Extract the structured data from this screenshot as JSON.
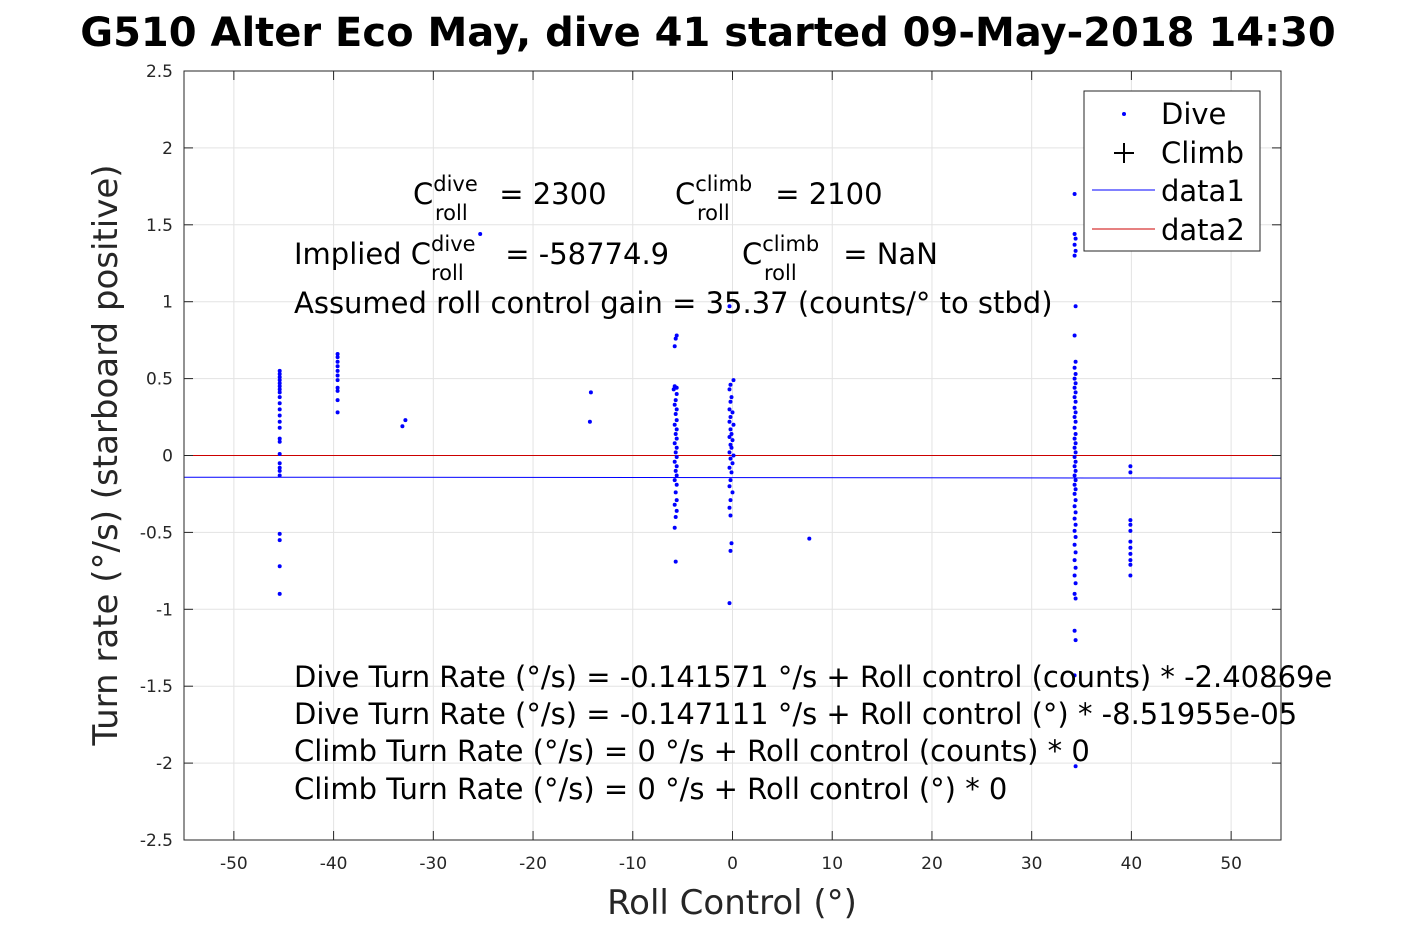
{
  "chart_data": {
    "type": "scatter",
    "title": "G510 Alter Eco May, dive 41 started 09-May-2018 14:30",
    "xlabel": "Roll Control (°)",
    "ylabel": "Turn rate (°/s) (starboard positive)",
    "xlim": [
      -55,
      55
    ],
    "ylim": [
      -2.5,
      2.5
    ],
    "grid": true,
    "xticks": [
      -50,
      -40,
      -30,
      -20,
      -10,
      0,
      10,
      20,
      30,
      40,
      50
    ],
    "yticks": [
      -2.5,
      -2,
      -1.5,
      -1,
      -0.5,
      0,
      0.5,
      1,
      1.5,
      2,
      2.5
    ],
    "legend": {
      "placement": "top-right",
      "entries": [
        "Dive",
        "Climb",
        "data1",
        "data2"
      ]
    },
    "series": [
      {
        "name": "Dive",
        "marker": "dot",
        "color": "#0000ff",
        "points": [
          [
            -45.4,
            0.55
          ],
          [
            -45.4,
            0.53
          ],
          [
            -45.4,
            0.51
          ],
          [
            -45.4,
            0.49
          ],
          [
            -45.4,
            0.47
          ],
          [
            -45.4,
            0.45
          ],
          [
            -45.4,
            0.43
          ],
          [
            -45.4,
            0.41
          ],
          [
            -45.4,
            0.38
          ],
          [
            -45.4,
            0.34
          ],
          [
            -45.4,
            0.3
          ],
          [
            -45.4,
            0.26
          ],
          [
            -45.4,
            0.22
          ],
          [
            -45.4,
            0.18
          ],
          [
            -45.4,
            0.11
          ],
          [
            -45.4,
            0.09
          ],
          [
            -45.4,
            0.01
          ],
          [
            -45.4,
            -0.05
          ],
          [
            -45.4,
            -0.08
          ],
          [
            -45.4,
            -0.1
          ],
          [
            -45.4,
            -0.13
          ],
          [
            -45.4,
            -0.51
          ],
          [
            -45.4,
            -0.55
          ],
          [
            -45.4,
            -0.72
          ],
          [
            -45.4,
            -0.9
          ],
          [
            -39.6,
            0.66
          ],
          [
            -39.6,
            0.64
          ],
          [
            -39.6,
            0.61
          ],
          [
            -39.6,
            0.58
          ],
          [
            -39.6,
            0.55
          ],
          [
            -39.6,
            0.52
          ],
          [
            -39.6,
            0.49
          ],
          [
            -39.6,
            0.44
          ],
          [
            -39.6,
            0.42
          ],
          [
            -39.6,
            0.36
          ],
          [
            -39.6,
            0.28
          ],
          [
            -32.8,
            0.23
          ],
          [
            -33.1,
            0.19
          ],
          [
            -25.3,
            1.44
          ],
          [
            -14.2,
            0.41
          ],
          [
            -14.3,
            0.22
          ],
          [
            -5.6,
            0.78
          ],
          [
            -5.7,
            0.76
          ],
          [
            -5.8,
            0.71
          ],
          [
            -5.8,
            0.45
          ],
          [
            -5.6,
            0.44
          ],
          [
            -5.9,
            0.43
          ],
          [
            -5.6,
            0.4
          ],
          [
            -5.7,
            0.36
          ],
          [
            -5.8,
            0.33
          ],
          [
            -5.6,
            0.3
          ],
          [
            -5.7,
            0.27
          ],
          [
            -5.6,
            0.23
          ],
          [
            -5.8,
            0.2
          ],
          [
            -5.6,
            0.17
          ],
          [
            -5.7,
            0.14
          ],
          [
            -5.6,
            0.11
          ],
          [
            -5.8,
            0.08
          ],
          [
            -5.6,
            0.05
          ],
          [
            -5.7,
            0.02
          ],
          [
            -5.6,
            -0.01
          ],
          [
            -5.8,
            -0.04
          ],
          [
            -5.6,
            -0.07
          ],
          [
            -5.7,
            -0.1
          ],
          [
            -5.6,
            -0.13
          ],
          [
            -5.8,
            -0.16
          ],
          [
            -5.6,
            -0.19
          ],
          [
            -5.7,
            -0.24
          ],
          [
            -5.6,
            -0.29
          ],
          [
            -5.8,
            -0.32
          ],
          [
            -5.6,
            -0.36
          ],
          [
            -5.7,
            -0.4
          ],
          [
            -5.8,
            -0.47
          ],
          [
            -5.7,
            -0.69
          ],
          [
            -0.3,
            0.97
          ],
          [
            0.1,
            0.49
          ],
          [
            -0.2,
            0.46
          ],
          [
            -0.3,
            0.43
          ],
          [
            -0.1,
            0.38
          ],
          [
            -0.2,
            0.35
          ],
          [
            -0.3,
            0.3
          ],
          [
            0.0,
            0.28
          ],
          [
            -0.2,
            0.25
          ],
          [
            -0.3,
            0.22
          ],
          [
            0.1,
            0.2
          ],
          [
            -0.2,
            0.17
          ],
          [
            -0.1,
            0.14
          ],
          [
            -0.3,
            0.12
          ],
          [
            0.0,
            0.1
          ],
          [
            -0.2,
            0.07
          ],
          [
            -0.1,
            0.05
          ],
          [
            -0.3,
            0.02
          ],
          [
            0.1,
            0.0
          ],
          [
            -0.2,
            -0.02
          ],
          [
            0.0,
            -0.05
          ],
          [
            -0.3,
            -0.08
          ],
          [
            -0.1,
            -0.11
          ],
          [
            -0.2,
            -0.16
          ],
          [
            -0.3,
            -0.2
          ],
          [
            0.0,
            -0.24
          ],
          [
            -0.2,
            -0.29
          ],
          [
            -0.3,
            -0.34
          ],
          [
            -0.2,
            -0.39
          ],
          [
            -0.1,
            -0.57
          ],
          [
            -0.2,
            -0.62
          ],
          [
            -0.3,
            -0.96
          ],
          [
            7.7,
            -0.54
          ],
          [
            34.3,
            1.7
          ],
          [
            34.3,
            1.44
          ],
          [
            34.4,
            1.41
          ],
          [
            34.3,
            1.37
          ],
          [
            34.4,
            1.33
          ],
          [
            34.3,
            1.3
          ],
          [
            34.4,
            0.97
          ],
          [
            34.3,
            0.78
          ],
          [
            34.4,
            0.61
          ],
          [
            34.3,
            0.57
          ],
          [
            34.4,
            0.53
          ],
          [
            34.3,
            0.5
          ],
          [
            34.4,
            0.47
          ],
          [
            34.3,
            0.44
          ],
          [
            34.4,
            0.41
          ],
          [
            34.3,
            0.38
          ],
          [
            34.4,
            0.35
          ],
          [
            34.3,
            0.31
          ],
          [
            34.4,
            0.28
          ],
          [
            34.3,
            0.25
          ],
          [
            34.4,
            0.22
          ],
          [
            34.3,
            0.18
          ],
          [
            34.4,
            0.14
          ],
          [
            34.3,
            0.11
          ],
          [
            34.4,
            0.08
          ],
          [
            34.3,
            0.05
          ],
          [
            34.4,
            0.02
          ],
          [
            34.3,
            -0.01
          ],
          [
            34.4,
            -0.04
          ],
          [
            34.3,
            -0.07
          ],
          [
            34.4,
            -0.1
          ],
          [
            34.3,
            -0.13
          ],
          [
            34.4,
            -0.16
          ],
          [
            34.3,
            -0.19
          ],
          [
            34.4,
            -0.22
          ],
          [
            34.3,
            -0.25
          ],
          [
            34.4,
            -0.29
          ],
          [
            34.3,
            -0.33
          ],
          [
            34.4,
            -0.37
          ],
          [
            34.3,
            -0.41
          ],
          [
            34.4,
            -0.45
          ],
          [
            34.3,
            -0.49
          ],
          [
            34.4,
            -0.53
          ],
          [
            34.3,
            -0.58
          ],
          [
            34.4,
            -0.63
          ],
          [
            34.3,
            -0.68
          ],
          [
            34.4,
            -0.73
          ],
          [
            34.3,
            -0.78
          ],
          [
            34.4,
            -0.83
          ],
          [
            34.3,
            -0.9
          ],
          [
            34.4,
            -0.93
          ],
          [
            34.3,
            -1.14
          ],
          [
            34.4,
            -1.2
          ],
          [
            34.3,
            -1.43
          ],
          [
            34.4,
            -2.02
          ],
          [
            39.9,
            -0.07
          ],
          [
            39.9,
            -0.11
          ],
          [
            39.9,
            -0.42
          ],
          [
            39.9,
            -0.45
          ],
          [
            39.9,
            -0.49
          ],
          [
            39.9,
            -0.56
          ],
          [
            39.9,
            -0.6
          ],
          [
            39.9,
            -0.64
          ],
          [
            39.9,
            -0.68
          ],
          [
            39.9,
            -0.71
          ],
          [
            39.9,
            -0.78
          ]
        ]
      },
      {
        "name": "Climb",
        "marker": "plus",
        "color": "#000000",
        "points": []
      },
      {
        "name": "data1",
        "marker": "line",
        "color": "#0000ff",
        "points": [
          [
            -55,
            -0.141
          ],
          [
            -40,
            -0.141
          ],
          [
            36,
            -0.146
          ],
          [
            55,
            -0.147
          ]
        ]
      },
      {
        "name": "data2",
        "marker": "line",
        "color": "#cc0000",
        "points": [
          [
            -55,
            0
          ],
          [
            55,
            0
          ]
        ]
      }
    ],
    "annotations": {
      "c_roll_dive": {
        "base": "C",
        "sup": "dive",
        "sub": "roll",
        "rest": " = 2300"
      },
      "c_roll_climb": {
        "base": "C",
        "sup": "climb",
        "sub": "roll",
        "rest": " = 2100"
      },
      "implied_dive": {
        "prefix": "Implied ",
        "base": "C",
        "sup": "dive",
        "sub": "roll",
        "rest": " = -58774.9"
      },
      "implied_climb": {
        "base": "C",
        "sup": "climb",
        "sub": "roll",
        "rest": " = NaN"
      },
      "gain": "Assumed roll control gain = 35.37 (counts/° to stbd)",
      "fit_lines": [
        "Dive Turn Rate (°/s) = -0.141571 °/s + Roll control (counts) * -2.40869e",
        "Dive Turn Rate (°/s) = -0.147111 °/s + Roll control (°) * -8.51955e-05",
        "Climb Turn Rate (°/s) = 0 °/s + Roll control (counts) * 0",
        "Climb Turn Rate (°/s) = 0 °/s + Roll control (°) * 0"
      ]
    }
  }
}
